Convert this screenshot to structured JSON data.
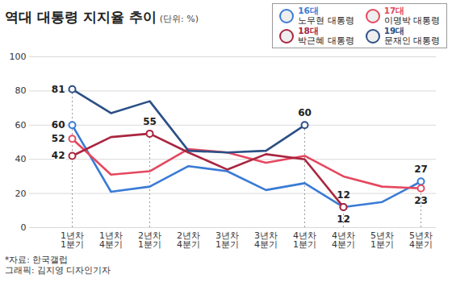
{
  "chart_data": {
    "type": "line",
    "title": "역대 대통령 지지율 추이",
    "subtitle": "(단위: %)",
    "notes": [
      "*자료: 한국갤럽",
      "그래픽: 김지영 디자인기자"
    ],
    "categories": [
      "1년차 1분기",
      "1년차 4분기",
      "2년차 1분기",
      "2년차 4분기",
      "3년차 1분기",
      "3년차 4분기",
      "4년차 1분기",
      "4년차 4분기",
      "5년차 1분기",
      "5년차 4분기"
    ],
    "series": [
      {
        "name": "16대 노무현 대통령",
        "color": "#3a7bd5",
        "values": [
          60,
          21,
          24,
          36,
          33,
          22,
          26,
          12,
          15,
          27
        ]
      },
      {
        "name": "17대 이명박 대통령",
        "color": "#e5485f",
        "values": [
          52,
          31,
          33,
          46,
          44,
          38,
          42,
          30,
          24,
          23
        ]
      },
      {
        "name": "18대 박근혜 대통령",
        "color": "#a9253f",
        "values": [
          42,
          53,
          55,
          44,
          34,
          43,
          40,
          12,
          null,
          null
        ]
      },
      {
        "name": "19대 문재인 대통령",
        "color": "#2b4f85",
        "values": [
          81,
          67,
          74,
          45,
          44,
          45,
          60,
          null,
          null,
          null
        ]
      }
    ],
    "annotations": [
      {
        "series": "19대 문재인 대통령",
        "category": "1년차 1분기",
        "text": "81",
        "color": "#fff27a"
      },
      {
        "series": "16대 노무현 대통령",
        "category": "1년차 1분기",
        "text": "60",
        "color": "#fff27a"
      },
      {
        "series": "17대 이명박 대통령",
        "category": "1년차 1분기",
        "text": "52",
        "color": "#fff27a"
      },
      {
        "series": "18대 박근혜 대통령",
        "category": "1년차 1분기",
        "text": "42"
      },
      {
        "series": "18대 박근혜 대통령",
        "category": "2년차 1분기",
        "text": "55",
        "color": "#fff27a"
      },
      {
        "series": "19대 문재인 대통령",
        "category": "4년차 1분기",
        "text": "60"
      },
      {
        "series": "16대 노무현 대통령",
        "category": "4년차 4분기",
        "text": "12",
        "color": "#ffffff"
      },
      {
        "series": "18대 박근혜 대통령",
        "category": "4년차 4분기",
        "text": "12",
        "color": "#ffffff"
      },
      {
        "series": "16대 노무현 대통령",
        "category": "5년차 4분기",
        "text": "27"
      },
      {
        "series": "17대 이명박 대통령",
        "category": "5년차 4분기",
        "text": "23",
        "color": "#ffffff"
      }
    ],
    "ylim": [
      0,
      100
    ],
    "yticks": [
      0,
      20,
      40,
      60,
      80,
      100
    ],
    "grid": true,
    "legend": "top-right",
    "marker": "circle"
  }
}
